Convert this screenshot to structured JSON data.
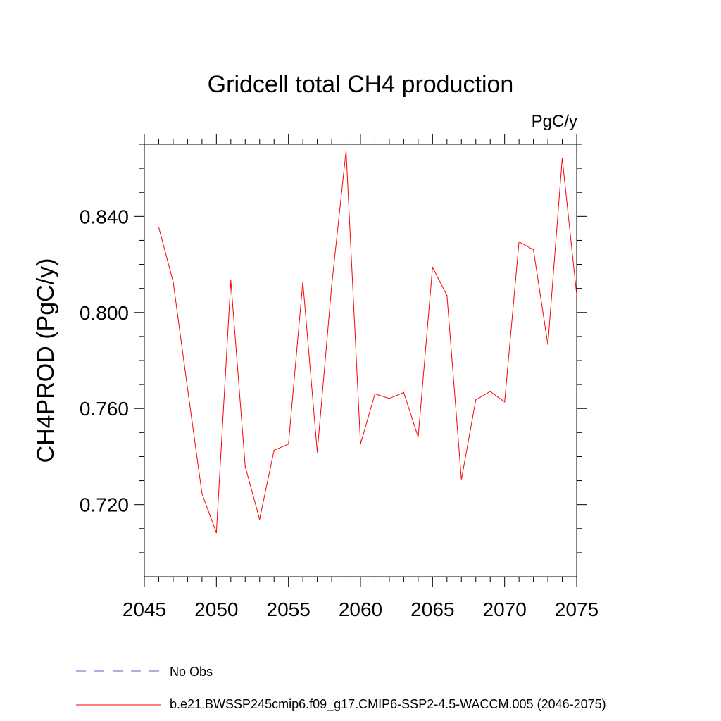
{
  "chart_data": {
    "type": "line",
    "title": "Gridcell total CH4 production",
    "units": "PgC/y",
    "xlabel": "",
    "ylabel": "CH4PROD  (PgC/y)",
    "xlim": [
      2045,
      2075
    ],
    "ylim": [
      0.69,
      0.87
    ],
    "x_ticks": [
      2045,
      2050,
      2055,
      2060,
      2065,
      2070,
      2075
    ],
    "y_ticks": [
      0.72,
      0.76,
      0.8,
      0.84
    ],
    "x_tick_labels": [
      "2045",
      "2050",
      "2055",
      "2060",
      "2065",
      "2070",
      "2075"
    ],
    "y_tick_labels": [
      "0.720",
      "0.760",
      "0.800",
      "0.840"
    ],
    "series": [
      {
        "name": "b.e21.BWSSP245cmip6.f09_g17.CMIP6-SSP2-4.5-WACCM.005 (2046-2075)",
        "color": "#ff0000",
        "x": [
          2046,
          2047,
          2048,
          2049,
          2050,
          2051,
          2052,
          2053,
          2054,
          2055,
          2056,
          2057,
          2058,
          2059,
          2060,
          2061,
          2062,
          2063,
          2064,
          2065,
          2066,
          2067,
          2068,
          2069,
          2070,
          2071,
          2072,
          2073,
          2074,
          2075
        ],
        "values": [
          0.8354,
          0.8128,
          0.7683,
          0.7245,
          0.7083,
          0.8133,
          0.7358,
          0.7139,
          0.7426,
          0.7452,
          0.8128,
          0.7419,
          0.8113,
          0.8674,
          0.7452,
          0.7661,
          0.7642,
          0.7667,
          0.7481,
          0.8188,
          0.8071,
          0.7304,
          0.7636,
          0.7671,
          0.7628,
          0.8294,
          0.8261,
          0.7866,
          0.8642,
          0.8074
        ]
      }
    ],
    "legend": [
      {
        "label": "No Obs",
        "color": "#6a5acd",
        "style": "dashed"
      },
      {
        "label": "b.e21.BWSSP245cmip6.f09_g17.CMIP6-SSP2-4.5-WACCM.005 (2046-2075)",
        "color": "#ff0000",
        "style": "solid"
      }
    ],
    "legend_position": "bottom-left",
    "grid": false
  }
}
